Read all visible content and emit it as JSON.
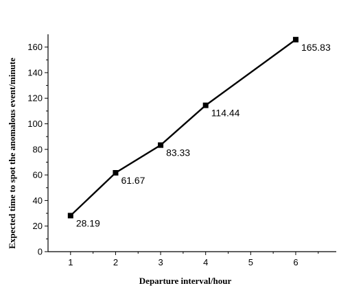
{
  "chart_data": {
    "type": "line",
    "title": "",
    "xlabel": "Departure interval/hour",
    "ylabel": "Expected time to spot the anomalous event/minute",
    "xlim": [
      0.5,
      6.9
    ],
    "ylim": [
      0,
      170
    ],
    "x_ticks": [
      1,
      2,
      3,
      4,
      5,
      6
    ],
    "y_ticks": [
      0,
      20,
      40,
      60,
      80,
      100,
      120,
      140,
      160
    ],
    "grid": false,
    "legend": "none",
    "series": [
      {
        "x": [
          1,
          2,
          3,
          4,
          6
        ],
        "values": [
          28.19,
          61.67,
          83.33,
          114.44,
          165.83
        ],
        "labels": [
          "28.19",
          "61.67",
          "83.33",
          "114.44",
          "165.83"
        ],
        "color": "#000000",
        "marker": "square"
      }
    ]
  }
}
